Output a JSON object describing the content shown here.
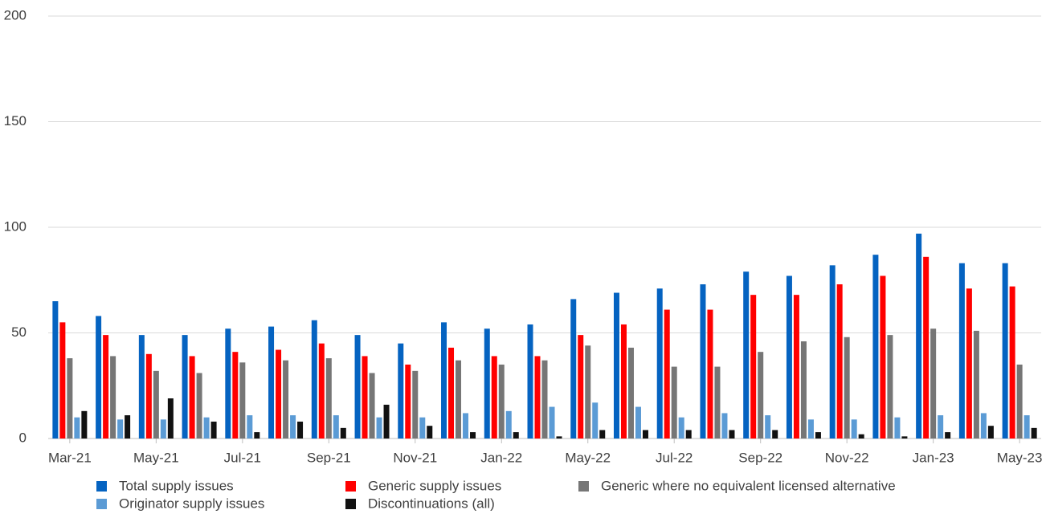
{
  "chart_data": {
    "type": "bar",
    "categories": [
      "Mar-21",
      null,
      "May-21",
      null,
      "Jul-21",
      null,
      "Sep-21",
      null,
      "Nov-21",
      null,
      "Jan-22",
      null,
      "May-22",
      null,
      "Jul-22",
      null,
      "Sep-22",
      null,
      "Nov-22",
      null,
      "Jan-23",
      null,
      "May-23"
    ],
    "series": [
      {
        "name": "Total supply issues",
        "color": "#0563c1",
        "values": [
          65,
          58,
          49,
          49,
          52,
          53,
          56,
          49,
          45,
          55,
          52,
          54,
          66,
          69,
          71,
          73,
          79,
          77,
          82,
          87,
          97,
          83,
          83
        ]
      },
      {
        "name": "Generic supply issues",
        "color": "#ff0000",
        "values": [
          55,
          49,
          40,
          39,
          41,
          42,
          45,
          39,
          35,
          43,
          39,
          39,
          49,
          54,
          61,
          61,
          68,
          68,
          73,
          77,
          86,
          71,
          72
        ]
      },
      {
        "name": "Generic where no equivalent licensed alternative",
        "color": "#767676",
        "values": [
          38,
          39,
          32,
          31,
          36,
          37,
          38,
          31,
          32,
          37,
          35,
          37,
          44,
          43,
          34,
          34,
          41,
          46,
          48,
          49,
          52,
          51,
          35
        ]
      },
      {
        "name": "Originator supply issues",
        "color": "#5b9bd5",
        "values": [
          10,
          9,
          9,
          10,
          11,
          11,
          11,
          10,
          10,
          12,
          13,
          15,
          17,
          15,
          10,
          12,
          11,
          9,
          9,
          10,
          11,
          12,
          11
        ]
      },
      {
        "name": "Discontinuations (all)",
        "color": "#111111",
        "values": [
          13,
          11,
          19,
          8,
          3,
          8,
          5,
          16,
          6,
          3,
          3,
          1,
          4,
          4,
          4,
          4,
          4,
          3,
          2,
          1,
          3,
          6,
          5
        ]
      }
    ],
    "ylim": [
      0,
      200
    ],
    "yticks": [
      0,
      50,
      100,
      150,
      200
    ],
    "grid": true
  }
}
